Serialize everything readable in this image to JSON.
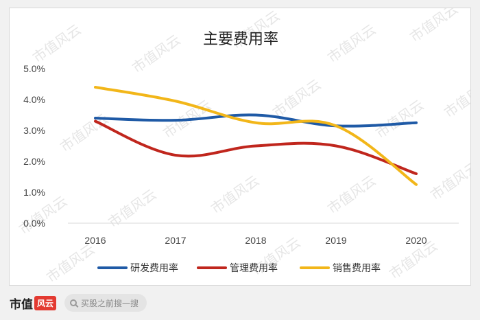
{
  "watermark_text": "市值风云",
  "chart_data": {
    "type": "line",
    "title": "主要费用率",
    "categories": [
      "2016",
      "2017",
      "2018",
      "2019",
      "2020"
    ],
    "ylim": [
      0,
      5
    ],
    "yticks": [
      "0.0%",
      "1.0%",
      "2.0%",
      "3.0%",
      "4.0%",
      "5.0%"
    ],
    "grid": false,
    "legend_position": "bottom",
    "series": [
      {
        "name": "研发费用率",
        "color": "#1f5aa6",
        "values": [
          3.4,
          3.33,
          3.5,
          3.15,
          3.25
        ]
      },
      {
        "name": "管理费用率",
        "color": "#c0261d",
        "values": [
          3.3,
          2.2,
          2.5,
          2.5,
          1.6
        ]
      },
      {
        "name": "销售费用率",
        "color": "#f2b619",
        "values": [
          4.4,
          3.95,
          3.25,
          3.15,
          1.25
        ]
      }
    ]
  },
  "footer": {
    "brand_text": "市值",
    "brand_badge": "风云",
    "search_placeholder": "买股之前搜一搜"
  }
}
